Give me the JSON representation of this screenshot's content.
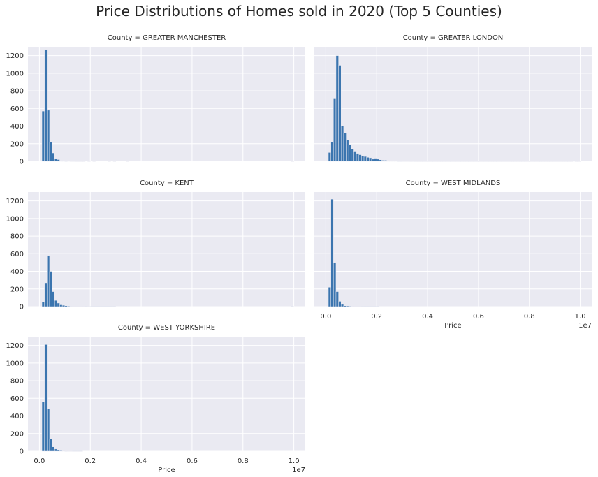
{
  "figure": {
    "title": "Price Distributions of Homes sold in 2020 (Top 5 Counties)"
  },
  "colors": {
    "bar": "#3b75af",
    "panel_background": "#eaeaf2",
    "grid": "#ffffff"
  },
  "chart_data": {
    "type": "bar",
    "subtype": "histogram-facet-grid",
    "grid": "on",
    "layout": "3 rows x 2 columns, shared axes",
    "xlim": [
      0,
      10000000
    ],
    "ylim": [
      0,
      1300
    ],
    "x_ticks": [
      0,
      2000000,
      4000000,
      6000000,
      8000000,
      10000000
    ],
    "x_tick_labels": [
      "0.0",
      "0.2",
      "0.4",
      "0.6",
      "0.8",
      "1.0"
    ],
    "x_offset_label": "1e7",
    "y_ticks": [
      0,
      200,
      400,
      600,
      800,
      1000,
      1200
    ],
    "y_tick_labels": [
      "0",
      "200",
      "400",
      "600",
      "800",
      "1000",
      "1200"
    ],
    "xlabel": "Price",
    "bin_width": 100000,
    "bin_start": 0,
    "panels": [
      {
        "title": "County = GREATER MANCHESTER",
        "values": [
          0,
          570,
          1270,
          580,
          220,
          95,
          30,
          20,
          10,
          6,
          3,
          4,
          2,
          2,
          1,
          1,
          1,
          1,
          0,
          1,
          0,
          1,
          0,
          0,
          0,
          0,
          0,
          1,
          0,
          1,
          0,
          0,
          0,
          0,
          1,
          0,
          0,
          0,
          0,
          0,
          0,
          0,
          0,
          0,
          0,
          0,
          0,
          0,
          0,
          0,
          0,
          0,
          0,
          0,
          0,
          0,
          0,
          0,
          0,
          0,
          0,
          0,
          0,
          0,
          0,
          0,
          0,
          0,
          0,
          0,
          0,
          0,
          0,
          0,
          0,
          0,
          0,
          0,
          0,
          0,
          0,
          0,
          0,
          0,
          0,
          0,
          0,
          0,
          0,
          0,
          0,
          0,
          0,
          0,
          0,
          0,
          0,
          0,
          0,
          1
        ]
      },
      {
        "title": "County = GREATER LONDON",
        "values": [
          0,
          100,
          220,
          710,
          1200,
          1090,
          400,
          320,
          240,
          185,
          140,
          115,
          90,
          75,
          60,
          55,
          45,
          40,
          25,
          35,
          25,
          18,
          12,
          12,
          6,
          6,
          5,
          4,
          3,
          3,
          2,
          2,
          2,
          1,
          2,
          1,
          1,
          1,
          1,
          1,
          1,
          1,
          1,
          1,
          1,
          1,
          1,
          1,
          1,
          1,
          1,
          1,
          1,
          1,
          1,
          1,
          1,
          1,
          1,
          1,
          1,
          1,
          1,
          1,
          1,
          1,
          1,
          1,
          1,
          1,
          1,
          1,
          1,
          1,
          1,
          1,
          1,
          1,
          1,
          1,
          1,
          1,
          1,
          1,
          1,
          1,
          1,
          1,
          1,
          1,
          1,
          1,
          1,
          1,
          1,
          1,
          1,
          10,
          1,
          1
        ]
      },
      {
        "title": "County = KENT",
        "values": [
          0,
          50,
          270,
          580,
          400,
          170,
          70,
          40,
          20,
          15,
          10,
          6,
          4,
          3,
          3,
          2,
          2,
          2,
          1,
          2,
          1,
          1,
          1,
          1,
          1,
          1,
          1,
          1,
          1,
          1,
          0,
          0,
          0,
          0,
          0,
          0,
          0,
          0,
          0,
          0,
          0,
          0,
          0,
          0,
          0,
          0,
          0,
          0,
          0,
          0,
          0,
          0,
          0,
          0,
          0,
          0,
          0,
          0,
          0,
          0,
          0,
          0,
          0,
          0,
          0,
          0,
          0,
          0,
          0,
          0,
          0,
          0,
          0,
          0,
          0,
          0,
          0,
          0,
          0,
          0,
          0,
          0,
          0,
          0,
          0,
          0,
          0,
          0,
          0,
          0,
          0,
          0,
          0,
          0,
          0,
          0,
          0,
          0,
          0,
          1
        ]
      },
      {
        "title": "County = WEST MIDLANDS",
        "values": [
          0,
          220,
          1220,
          500,
          170,
          60,
          25,
          10,
          8,
          5,
          3,
          3,
          2,
          2,
          1,
          1,
          1,
          1,
          1,
          1,
          1,
          0,
          0,
          0,
          0,
          0,
          0,
          0,
          0,
          0,
          0,
          0,
          0,
          0,
          0,
          0,
          0,
          0,
          0,
          0,
          0,
          0,
          0,
          0,
          0,
          0,
          0,
          0,
          0,
          0,
          0,
          0,
          0,
          0,
          0,
          0,
          0,
          0,
          0,
          0,
          0,
          0,
          0,
          0,
          0,
          0,
          0,
          0,
          0,
          0,
          0,
          0,
          0,
          0,
          0,
          0,
          0,
          0,
          0,
          0,
          0,
          0,
          0,
          0,
          0,
          0,
          0,
          0,
          0,
          0,
          0,
          0,
          0,
          0,
          0,
          0,
          0,
          0,
          0,
          0
        ]
      },
      {
        "title": "County = WEST YORKSHIRE",
        "values": [
          0,
          560,
          1210,
          480,
          140,
          50,
          25,
          10,
          6,
          4,
          3,
          2,
          2,
          1,
          1,
          1,
          1,
          0,
          0,
          0,
          0,
          0,
          0,
          0,
          0,
          0,
          0,
          0,
          0,
          0,
          0,
          0,
          0,
          0,
          0,
          0,
          0,
          0,
          0,
          0,
          0,
          0,
          0,
          0,
          0,
          0,
          0,
          0,
          0,
          0,
          0,
          0,
          0,
          0,
          0,
          0,
          0,
          0,
          0,
          0,
          0,
          0,
          0,
          0,
          0,
          0,
          0,
          0,
          0,
          0,
          0,
          0,
          0,
          0,
          0,
          0,
          0,
          0,
          0,
          0,
          0,
          0,
          0,
          0,
          0,
          0,
          0,
          0,
          0,
          0,
          0,
          0,
          0,
          0,
          0,
          0,
          0,
          0,
          0,
          0
        ]
      }
    ]
  }
}
